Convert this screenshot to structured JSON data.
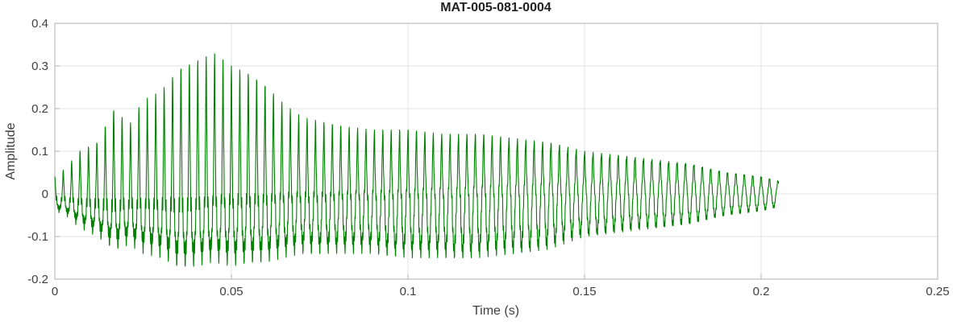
{
  "figure": {
    "background": "#ffffff"
  },
  "chart_data": {
    "type": "line",
    "title": "MAT-005-081-0004",
    "xlabel": "Time (s)",
    "ylabel": "Amplitude",
    "xlim": [
      0,
      0.25
    ],
    "ylim": [
      -0.2,
      0.4
    ],
    "xticks": [
      0,
      0.05,
      0.1,
      0.15,
      0.2,
      0.25
    ],
    "xtick_labels": [
      "0",
      "0.05",
      "0.1",
      "0.15",
      "0.2",
      "0.25"
    ],
    "yticks": [
      -0.2,
      -0.1,
      0,
      0.1,
      0.2,
      0.3,
      0.4
    ],
    "ytick_labels": [
      "-0.2",
      "-0.1",
      "0",
      "0.1",
      "0.2",
      "0.3",
      "0.4"
    ],
    "grid": true,
    "line_color": "#008000",
    "grid_color": "#e3e3e3",
    "axis_color": "#b0b0b0",
    "tick_label_color": "#3f3f3f",
    "title_color": "#222222",
    "signal": {
      "description": "dense oscillatory waveform (audio-like burst), onset at t=0, decaying after peak near t=0.045 s, ends near t=0.205 s",
      "duration_s": 0.205,
      "sample_rate_hz": 16000,
      "fundamental_hz": 420,
      "harmonic_amplitudes": [
        1,
        0.55,
        0.38,
        0.25,
        0.15
      ],
      "harmonic_decay": {
        "start": 1,
        "min": 0.2,
        "rate_per_s": 4.5
      },
      "noise_component": {
        "freq_hz": 3777,
        "amplitude": 0.12,
        "phase": 2.1
      },
      "peak_amplitude": 0.33,
      "min_amplitude": -0.17,
      "envelope": {
        "t": [
          0,
          0.003,
          0.007,
          0.012,
          0.017,
          0.021,
          0.025,
          0.03,
          0.035,
          0.04,
          0.045,
          0.05,
          0.055,
          0.06,
          0.065,
          0.07,
          0.08,
          0.09,
          0.1,
          0.11,
          0.12,
          0.13,
          0.14,
          0.15,
          0.16,
          0.17,
          0.18,
          0.19,
          0.2,
          0.205
        ],
        "upper": [
          0.04,
          0.06,
          0.1,
          0.12,
          0.2,
          0.16,
          0.22,
          0.24,
          0.29,
          0.31,
          0.33,
          0.3,
          0.28,
          0.25,
          0.21,
          0.18,
          0.16,
          0.15,
          0.15,
          0.14,
          0.14,
          0.13,
          0.12,
          0.1,
          0.09,
          0.08,
          0.07,
          0.05,
          0.04,
          0.03
        ],
        "lower": [
          -0.04,
          -0.05,
          -0.08,
          -0.1,
          -0.13,
          -0.12,
          -0.14,
          -0.15,
          -0.17,
          -0.17,
          -0.16,
          -0.17,
          -0.16,
          -0.16,
          -0.15,
          -0.14,
          -0.14,
          -0.14,
          -0.15,
          -0.15,
          -0.15,
          -0.14,
          -0.13,
          -0.1,
          -0.09,
          -0.08,
          -0.07,
          -0.05,
          -0.04,
          -0.03
        ]
      }
    }
  }
}
